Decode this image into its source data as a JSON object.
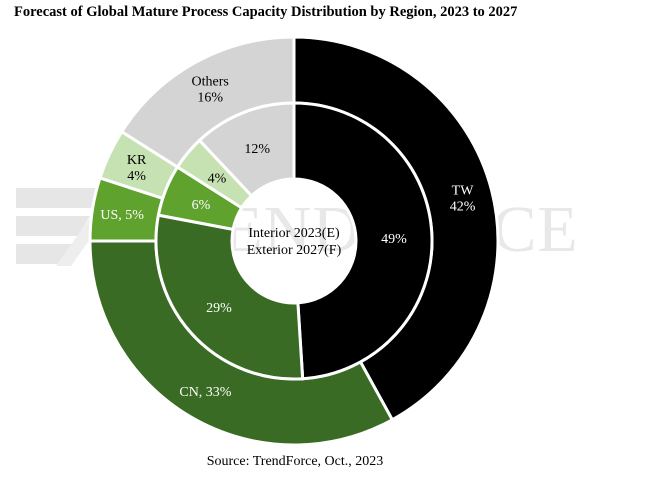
{
  "title": "Forecast of Global Mature Process Capacity Distribution by Region, 2023 to 2027",
  "source": "Source: TrendForce, Oct., 2023",
  "watermark": "TRENDFORCE",
  "center_label": [
    "Interior 2023(E)",
    "Exterior 2027(F)"
  ],
  "chart_data": {
    "type": "pie",
    "variant": "nested-donut",
    "categories": [
      "TW",
      "CN",
      "US",
      "KR",
      "Others"
    ],
    "series": [
      {
        "name": "Interior 2023(E)",
        "values": [
          49,
          29,
          6,
          4,
          12
        ],
        "labels": [
          "49%",
          "29%",
          "6%",
          "4%",
          "12%"
        ]
      },
      {
        "name": "Exterior 2027(F)",
        "values": [
          42,
          33,
          5,
          4,
          16
        ],
        "labels": [
          "TW\n42%",
          "CN, 33%",
          "US, 5%",
          "KR\n4%",
          "Others\n16%"
        ]
      }
    ],
    "colors": {
      "TW": "#000000",
      "CN": "#3a6b24",
      "US": "#5fa32e",
      "KR": "#c6e2b3",
      "Others": "#d4d4d4"
    },
    "label_colors": {
      "TW": "#ffffff",
      "CN": "#ffffff",
      "US": "#ffffff",
      "KR": "#000000",
      "Others": "#000000"
    }
  }
}
